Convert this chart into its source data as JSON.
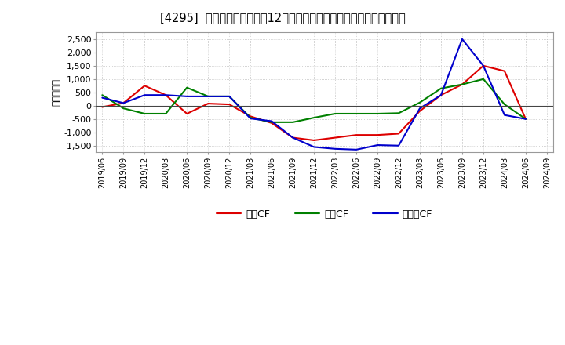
{
  "title": "[4295]  キャッシュフローの12か月移動合計の対前年同期増減額の推移",
  "ylabel": "（百万円）",
  "background_color": "#ffffff",
  "plot_bg_color": "#ffffff",
  "grid_color": "#aaaaaa",
  "ylim": [
    -1750,
    2750
  ],
  "yticks": [
    -1500,
    -1000,
    -500,
    0,
    500,
    1000,
    1500,
    2000,
    2500
  ],
  "x_labels": [
    "2019/06",
    "2019/09",
    "2019/12",
    "2020/03",
    "2020/06",
    "2020/09",
    "2020/12",
    "2021/03",
    "2021/06",
    "2021/09",
    "2021/12",
    "2022/03",
    "2022/06",
    "2022/09",
    "2022/12",
    "2023/03",
    "2023/06",
    "2023/09",
    "2023/12",
    "2024/03",
    "2024/06",
    "2024/09"
  ],
  "series": {
    "営業CF": {
      "color": "#dd0000",
      "values": [
        -50,
        100,
        750,
        400,
        -300,
        80,
        50,
        -400,
        -650,
        -1200,
        -1300,
        -1200,
        -1100,
        -1100,
        -1050,
        -200,
        400,
        800,
        1500,
        1300,
        -500,
        null
      ]
    },
    "投資CF": {
      "color": "#008000",
      "values": [
        400,
        -100,
        -300,
        -300,
        680,
        350,
        350,
        -450,
        -620,
        -620,
        -450,
        -300,
        -300,
        -300,
        -280,
        120,
        650,
        800,
        1000,
        50,
        -500,
        null
      ]
    },
    "フリーCF": {
      "color": "#0000cc",
      "values": [
        300,
        100,
        400,
        400,
        350,
        350,
        350,
        -480,
        -580,
        -1200,
        -1550,
        -1620,
        -1650,
        -1480,
        -1500,
        -100,
        400,
        2500,
        1500,
        -350,
        -500,
        null
      ]
    }
  },
  "legend_labels": [
    "営業CF",
    "投資CF",
    "フリーCF"
  ],
  "legend_colors": [
    "#dd0000",
    "#008000",
    "#0000cc"
  ]
}
